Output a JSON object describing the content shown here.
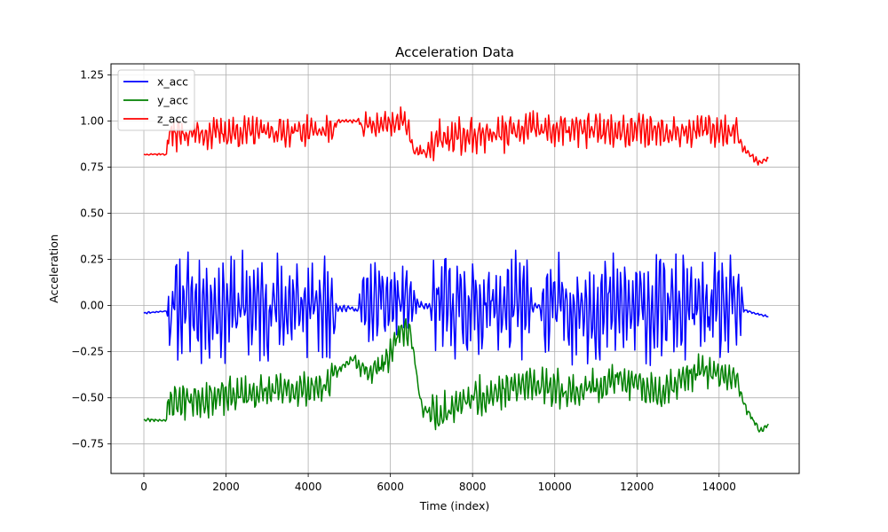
{
  "chart_data": {
    "type": "line",
    "title": "Acceleration Data",
    "xlabel": "Time (index)",
    "ylabel": "Acceleration",
    "xlim": [
      -800,
      15950
    ],
    "ylim": [
      -0.91,
      1.31
    ],
    "xticks": [
      0,
      2000,
      4000,
      6000,
      8000,
      10000,
      12000,
      14000
    ],
    "xtick_labels": [
      "0",
      "2000",
      "4000",
      "6000",
      "8000",
      "10000",
      "12000",
      "14000"
    ],
    "yticks": [
      -0.75,
      -0.5,
      -0.25,
      0.0,
      0.25,
      0.5,
      0.75,
      1.0,
      1.25
    ],
    "ytick_labels": [
      "−0.75",
      "−0.50",
      "−0.25",
      "0.00",
      "0.25",
      "0.50",
      "0.75",
      "1.00",
      "1.25"
    ],
    "grid": true,
    "legend_position": "top-left",
    "series": [
      {
        "name": "x_acc",
        "color": "#0000ff",
        "baseline": [
          [
            0,
            -0.04
          ],
          [
            550,
            -0.03
          ],
          [
            800,
            0.0
          ],
          [
            4700,
            -0.01
          ],
          [
            5200,
            -0.02
          ],
          [
            5500,
            0.0
          ],
          [
            6000,
            0.02
          ],
          [
            6400,
            0.03
          ],
          [
            6800,
            -0.01
          ],
          [
            7000,
            0.0
          ],
          [
            14500,
            -0.02
          ],
          [
            15200,
            -0.06
          ]
        ],
        "amplitude": [
          [
            0,
            0.005
          ],
          [
            550,
            0.005
          ],
          [
            620,
            0.27
          ],
          [
            4600,
            0.27
          ],
          [
            4700,
            0.02
          ],
          [
            5200,
            0.02
          ],
          [
            5300,
            0.22
          ],
          [
            6300,
            0.2
          ],
          [
            6800,
            0.02
          ],
          [
            6950,
            0.02
          ],
          [
            7050,
            0.27
          ],
          [
            9300,
            0.27
          ],
          [
            9500,
            0.02
          ],
          [
            9650,
            0.02
          ],
          [
            9750,
            0.27
          ],
          [
            14500,
            0.27
          ],
          [
            14600,
            0.01
          ],
          [
            15200,
            0.005
          ]
        ],
        "ymin": -0.34,
        "ymax": 0.3,
        "seed": 11
      },
      {
        "name": "y_acc",
        "color": "#008000",
        "baseline": [
          [
            0,
            -0.62
          ],
          [
            550,
            -0.62
          ],
          [
            600,
            -0.52
          ],
          [
            4400,
            -0.44
          ],
          [
            4700,
            -0.36
          ],
          [
            5100,
            -0.28
          ],
          [
            5500,
            -0.36
          ],
          [
            6000,
            -0.27
          ],
          [
            6300,
            -0.12
          ],
          [
            6500,
            -0.15
          ],
          [
            6750,
            -0.55
          ],
          [
            7200,
            -0.6
          ],
          [
            8000,
            -0.5
          ],
          [
            9500,
            -0.42
          ],
          [
            10500,
            -0.47
          ],
          [
            11500,
            -0.4
          ],
          [
            12500,
            -0.47
          ],
          [
            13500,
            -0.35
          ],
          [
            14400,
            -0.4
          ],
          [
            14700,
            -0.58
          ],
          [
            15000,
            -0.68
          ],
          [
            15200,
            -0.65
          ]
        ],
        "amplitude": [
          [
            0,
            0.01
          ],
          [
            550,
            0.01
          ],
          [
            620,
            0.1
          ],
          [
            4600,
            0.08
          ],
          [
            4700,
            0.03
          ],
          [
            5100,
            0.02
          ],
          [
            5300,
            0.08
          ],
          [
            6300,
            0.1
          ],
          [
            6600,
            0.03
          ],
          [
            6900,
            0.05
          ],
          [
            7000,
            0.11
          ],
          [
            14400,
            0.08
          ],
          [
            14600,
            0.03
          ],
          [
            15200,
            0.01
          ]
        ],
        "ymin": -0.81,
        "ymax": 0.02,
        "seed": 23
      },
      {
        "name": "z_acc",
        "color": "#ff0000",
        "baseline": [
          [
            0,
            0.82
          ],
          [
            550,
            0.82
          ],
          [
            600,
            0.93
          ],
          [
            4600,
            0.95
          ],
          [
            4700,
            1.0
          ],
          [
            5200,
            1.0
          ],
          [
            5300,
            0.97
          ],
          [
            6400,
            1.0
          ],
          [
            6550,
            0.85
          ],
          [
            6900,
            0.82
          ],
          [
            7100,
            0.9
          ],
          [
            9400,
            0.95
          ],
          [
            9500,
            0.97
          ],
          [
            9700,
            0.95
          ],
          [
            14400,
            0.95
          ],
          [
            14600,
            0.85
          ],
          [
            15000,
            0.77
          ],
          [
            15200,
            0.8
          ]
        ],
        "amplitude": [
          [
            0,
            0.005
          ],
          [
            550,
            0.005
          ],
          [
            620,
            0.09
          ],
          [
            4600,
            0.07
          ],
          [
            4700,
            0.01
          ],
          [
            5200,
            0.01
          ],
          [
            5300,
            0.07
          ],
          [
            6400,
            0.07
          ],
          [
            6550,
            0.04
          ],
          [
            6900,
            0.03
          ],
          [
            7000,
            0.1
          ],
          [
            14400,
            0.08
          ],
          [
            14600,
            0.03
          ],
          [
            15200,
            0.01
          ]
        ],
        "ymin": 0.66,
        "ymax": 1.2,
        "seed": 37
      }
    ]
  }
}
